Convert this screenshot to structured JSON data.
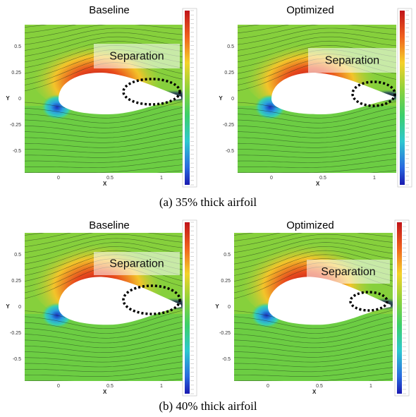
{
  "panels": [
    {
      "title": "Baseline",
      "annotation": "Separation",
      "y_label": "Y",
      "x_label": "X",
      "yticks": [
        "0.5",
        "0.25",
        "0",
        "-0.25",
        "-0.5"
      ],
      "xticks": [
        "0",
        "0.5",
        "1"
      ]
    },
    {
      "title": "Optimized",
      "annotation": "Separation",
      "y_label": "Y",
      "x_label": "X",
      "yticks": [
        "0.5",
        "0.25",
        "0",
        "-0.25",
        "-0.5"
      ],
      "xticks": [
        "0",
        "0.5",
        "1"
      ]
    },
    {
      "title": "Baseline",
      "annotation": "Separation",
      "y_label": "Y",
      "x_label": "X",
      "yticks": [
        "0.5",
        "0.25",
        "0",
        "-0.25",
        "-0.5"
      ],
      "xticks": [
        "0",
        "0.5",
        "1"
      ]
    },
    {
      "title": "Optimized",
      "annotation": "Separation",
      "y_label": "Y",
      "x_label": "X",
      "yticks": [
        "0.5",
        "0.25",
        "0",
        "-0.25",
        "-0.5"
      ],
      "xticks": [
        "0",
        "0.5",
        "1"
      ]
    }
  ],
  "captions": [
    "(a) 35% thick airfoil",
    "(b) 40% thick airfoil"
  ]
}
